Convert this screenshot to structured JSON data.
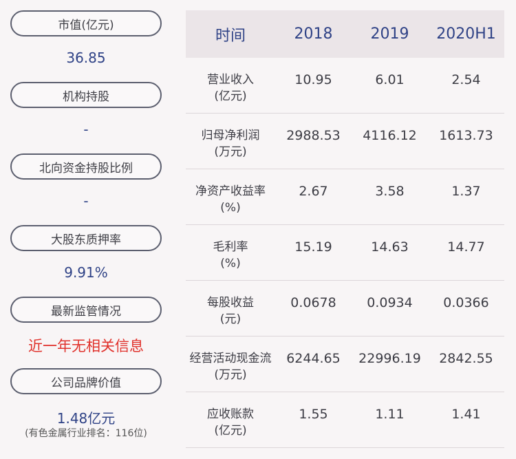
{
  "left_panel": {
    "items": [
      {
        "label": "市值(亿元)",
        "value": "36.85"
      },
      {
        "label": "机构持股",
        "value": "-"
      },
      {
        "label": "北向资金持股比例",
        "value": "-"
      },
      {
        "label": "大股东质押率",
        "value": "9.91%"
      },
      {
        "label": "最新监管情况",
        "value": "近一年无相关信息"
      },
      {
        "label": "公司品牌价值",
        "value": "1.48亿元",
        "note": "(有色金属行业排名：116位)"
      }
    ]
  },
  "table": {
    "headers": [
      "时间",
      "2018",
      "2019",
      "2020H1"
    ],
    "rows": [
      {
        "name": "营业收入",
        "unit": "(亿元)",
        "values": [
          "10.95",
          "6.01",
          "2.54"
        ]
      },
      {
        "name": "归母净利润",
        "unit": "(万元)",
        "values": [
          "2988.53",
          "4116.12",
          "1613.73"
        ]
      },
      {
        "name": "净资产收益率",
        "unit": "(%)",
        "values": [
          "2.67",
          "3.58",
          "1.37"
        ]
      },
      {
        "name": "毛利率",
        "unit": "(%)",
        "values": [
          "15.19",
          "14.63",
          "14.77"
        ]
      },
      {
        "name": "每股收益",
        "unit": "(元)",
        "values": [
          "0.0678",
          "0.0934",
          "0.0366"
        ]
      },
      {
        "name": "经营活动现金流",
        "unit": "(万元)",
        "values": [
          "6244.65",
          "22996.19",
          "2842.55"
        ]
      },
      {
        "name": "应收账款",
        "unit": "(亿元)",
        "values": [
          "1.55",
          "1.11",
          "1.41"
        ]
      }
    ]
  },
  "colors": {
    "background": "#f8f5f6",
    "accent_blue": "#2f4286",
    "alert_red": "#e0302a",
    "header_bg": "#ebe5e8",
    "pill_border": "#5b5e6e"
  }
}
